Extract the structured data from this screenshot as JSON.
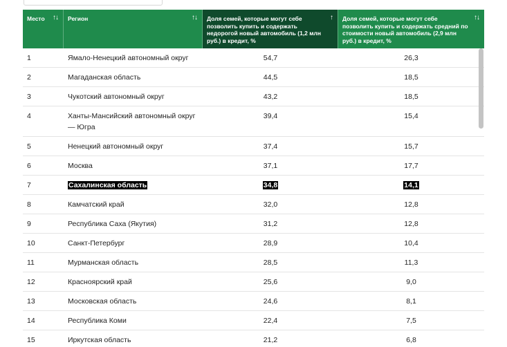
{
  "header": {
    "col_place": "Место",
    "col_region": "Регион",
    "col_cheap": "Доля семей, которые могут себе позволить купить и содержать недорогой новый автомобиль (1,2 млн руб.) в кредит, %",
    "col_mid": "Доля семей, которые могут себе позволить купить и содержать средний по стоимости новый автомобиль (2,9 млн руб.) в кредит, %",
    "sort_both": "↑↓",
    "sort_up": "↑"
  },
  "rows": [
    {
      "place": "1",
      "region": "Ямало-Ненецкий автономный округ",
      "cheap": "54,7",
      "mid": "26,3"
    },
    {
      "place": "2",
      "region": "Магаданская область",
      "cheap": "44,5",
      "mid": "18,5"
    },
    {
      "place": "3",
      "region": "Чукотский автономный округ",
      "cheap": "43,2",
      "mid": "18,5"
    },
    {
      "place": "4",
      "region": "Ханты-Мансийский автономный округ — Югра",
      "cheap": "39,4",
      "mid": "15,4"
    },
    {
      "place": "5",
      "region": "Ненецкий автономный округ",
      "cheap": "37,4",
      "mid": "15,7"
    },
    {
      "place": "6",
      "region": "Москва",
      "cheap": "37,1",
      "mid": "17,7"
    },
    {
      "place": "7",
      "region": "Сахалинская область",
      "cheap": "34,8",
      "mid": "14,1"
    },
    {
      "place": "8",
      "region": "Камчатский край",
      "cheap": "32,0",
      "mid": "12,8"
    },
    {
      "place": "9",
      "region": "Республика Саха (Якутия)",
      "cheap": "31,2",
      "mid": "12,8"
    },
    {
      "place": "10",
      "region": "Санкт-Петербург",
      "cheap": "28,9",
      "mid": "10,4"
    },
    {
      "place": "11",
      "region": "Мурманская область",
      "cheap": "28,5",
      "mid": "11,3"
    },
    {
      "place": "12",
      "region": "Красноярский край",
      "cheap": "25,6",
      "mid": "9,0"
    },
    {
      "place": "13",
      "region": "Московская область",
      "cheap": "24,6",
      "mid": "8,1"
    },
    {
      "place": "14",
      "region": "Республика Коми",
      "cheap": "22,4",
      "mid": "7,5"
    },
    {
      "place": "15",
      "region": "Иркутская область",
      "cheap": "21,2",
      "mid": "6,8"
    }
  ]
}
